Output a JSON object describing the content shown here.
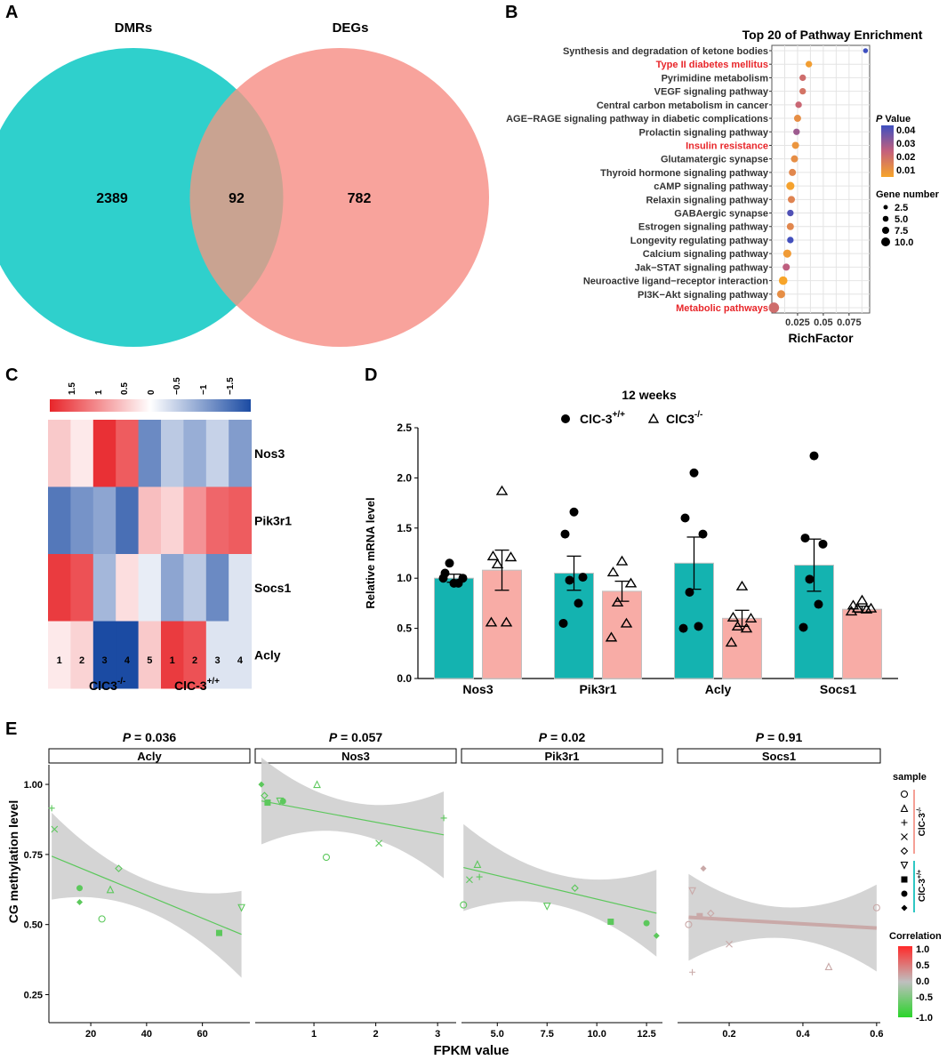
{
  "panels": {
    "A": "A",
    "B": "B",
    "C": "C",
    "D": "D",
    "E": "E"
  },
  "colors": {
    "teal": "#2fd0cc",
    "salmon": "#f89891",
    "overlap": "#c9a391",
    "bar_teal": "#14b3b0",
    "bar_salmon": "#f8aca6",
    "red_text": "#e8262a",
    "fit_green": "#5cc85c",
    "ribbon": "#cfcfcf",
    "socs1_line": "#c9a9a8"
  },
  "chart_data": [
    {
      "type": "venn",
      "panel": "A",
      "sets": [
        {
          "name": "DMRs",
          "only": "2389"
        },
        {
          "name": "DEGs",
          "only": "782"
        }
      ],
      "intersection": "92"
    },
    {
      "type": "scatter",
      "panel": "B",
      "title": "Top 20 of Pathway Enrichment",
      "xlabel": "RichFactor",
      "xticks": [
        "0.025",
        "0.05",
        "0.075"
      ],
      "xlim": [
        0,
        0.095
      ],
      "pathways": [
        {
          "name": "Synthesis and degradation of ketone bodies",
          "rich": 0.091,
          "p": 0.045,
          "genes": 1,
          "highlight": false
        },
        {
          "name": "Type II diabetes mellitus",
          "rich": 0.036,
          "p": 0.005,
          "genes": 3,
          "highlight": true
        },
        {
          "name": "Pyrimidine metabolism",
          "rich": 0.03,
          "p": 0.02,
          "genes": 3,
          "highlight": false
        },
        {
          "name": "VEGF signaling pathway",
          "rich": 0.03,
          "p": 0.018,
          "genes": 3,
          "highlight": false
        },
        {
          "name": "Central carbon metabolism in cancer",
          "rich": 0.026,
          "p": 0.022,
          "genes": 3,
          "highlight": false
        },
        {
          "name": "AGE−RAGE signaling pathway in diabetic complications",
          "rich": 0.025,
          "p": 0.01,
          "genes": 4,
          "highlight": false
        },
        {
          "name": "Prolactin signaling pathway",
          "rich": 0.024,
          "p": 0.03,
          "genes": 3,
          "highlight": false
        },
        {
          "name": "Insulin resistance",
          "rich": 0.023,
          "p": 0.008,
          "genes": 4,
          "highlight": true
        },
        {
          "name": "Glutamatergic synapse",
          "rich": 0.022,
          "p": 0.01,
          "genes": 4,
          "highlight": false
        },
        {
          "name": "Thyroid hormone signaling pathway",
          "rich": 0.02,
          "p": 0.012,
          "genes": 4,
          "highlight": false
        },
        {
          "name": "cAMP signaling pathway",
          "rich": 0.018,
          "p": 0.004,
          "genes": 6,
          "highlight": false
        },
        {
          "name": "Relaxin signaling pathway",
          "rich": 0.019,
          "p": 0.013,
          "genes": 4,
          "highlight": false
        },
        {
          "name": "GABAergic synapse",
          "rich": 0.018,
          "p": 0.042,
          "genes": 3,
          "highlight": false
        },
        {
          "name": "Estrogen signaling pathway",
          "rich": 0.018,
          "p": 0.012,
          "genes": 4,
          "highlight": false
        },
        {
          "name": "Longevity regulating pathway",
          "rich": 0.018,
          "p": 0.044,
          "genes": 3,
          "highlight": false
        },
        {
          "name": "Calcium signaling pathway",
          "rich": 0.015,
          "p": 0.006,
          "genes": 6,
          "highlight": false
        },
        {
          "name": "Jak−STAT signaling pathway",
          "rich": 0.014,
          "p": 0.025,
          "genes": 4,
          "highlight": false
        },
        {
          "name": "Neuroactive ligand−receptor interaction",
          "rich": 0.011,
          "p": 0.003,
          "genes": 7,
          "highlight": false
        },
        {
          "name": "PI3K−Akt signaling pathway",
          "rich": 0.009,
          "p": 0.01,
          "genes": 6,
          "highlight": false
        },
        {
          "name": "Metabolic pathways",
          "rich": 0.002,
          "p": 0.02,
          "genes": 12,
          "highlight": true
        }
      ],
      "legend": {
        "pvalue_title_italic": "P",
        "pvalue_title_rest": " Value",
        "pvalue_ticks": [
          "0.04",
          "0.03",
          "0.02",
          "0.01"
        ],
        "gene_title": "Gene number",
        "gene_ticks": [
          "2.5",
          "5.0",
          "7.5",
          "10.0"
        ]
      }
    },
    {
      "type": "heatmap",
      "panel": "C",
      "scale_ticks": [
        "1.5",
        "1",
        "0.5",
        "0",
        "−0.5",
        "−1",
        "−1.5"
      ],
      "rows": [
        "Nos3",
        "Pik3r1",
        "Socs1",
        "Acly"
      ],
      "columns": [
        "1",
        "2",
        "3",
        "4",
        "5",
        "1",
        "2",
        "3",
        "4"
      ],
      "values": [
        [
          0.5,
          0.2,
          1.9,
          1.5,
          -1.3,
          -0.6,
          -0.9,
          -0.5,
          -1.1
        ],
        [
          -1.5,
          -1.2,
          -1.0,
          -1.6,
          0.6,
          0.4,
          1.0,
          1.4,
          1.5
        ],
        [
          1.8,
          1.6,
          -0.8,
          0.3,
          -0.2,
          -1.0,
          -0.6,
          -1.3,
          -0.3
        ],
        [
          0.2,
          0.4,
          -2.0,
          -2.0,
          0.5,
          1.8,
          1.6,
          -0.3,
          -0.3
        ]
      ],
      "group_labels": [
        "ClC3",
        "ClC-3"
      ],
      "group_sups": [
        "-/-",
        "+/+"
      ]
    },
    {
      "type": "bar",
      "panel": "D",
      "title": "12 weeks",
      "ylabel": "Relative mRNA level",
      "ylim": [
        0,
        2.5
      ],
      "yticks": [
        "0.0",
        "0.5",
        "1.0",
        "1.5",
        "2.0",
        "2.5"
      ],
      "categories": [
        "Nos3",
        "Pik3r1",
        "Acly",
        "Socs1"
      ],
      "legend": [
        {
          "name": "ClC-3",
          "sup": "+/+"
        },
        {
          "name": "ClC3",
          "sup": "-/-"
        }
      ],
      "series": [
        {
          "name": "ClC-3+/+",
          "values": [
            1.0,
            1.05,
            1.15,
            1.13
          ],
          "sem": [
            0.04,
            0.17,
            0.26,
            0.26
          ],
          "points": [
            [
              0.95,
              1.05,
              1.0,
              1.15,
              0.95,
              1.0
            ],
            [
              1.66,
              1.44,
              1.01,
              0.98,
              0.75,
              0.55
            ],
            [
              2.05,
              1.6,
              1.44,
              0.86,
              0.52,
              0.5
            ],
            [
              2.22,
              1.4,
              1.34,
              0.99,
              0.74,
              0.51
            ]
          ]
        },
        {
          "name": "ClC3-/-",
          "values": [
            1.08,
            0.87,
            0.6,
            0.69
          ],
          "sem": [
            0.2,
            0.1,
            0.08,
            0.03
          ],
          "points": [
            [
              1.87,
              1.22,
              1.21,
              1.14,
              0.56,
              0.56
            ],
            [
              1.17,
              1.06,
              0.95,
              0.76,
              0.55,
              0.41
            ],
            [
              0.92,
              0.61,
              0.6,
              0.52,
              0.5,
              0.36
            ],
            [
              0.78,
              0.73,
              0.7,
              0.7,
              0.69,
              0.67
            ]
          ]
        }
      ]
    },
    {
      "type": "scatter",
      "panel": "E",
      "ylabel": "CG methylation level",
      "xlabel": "FPKM value",
      "yticks": [
        "0.25",
        "0.50",
        "0.75",
        "1.00"
      ],
      "ylim": [
        0.15,
        1.07
      ],
      "facets": [
        {
          "name": "Acly",
          "p_italic": "P",
          "p_rest": " = 0.036",
          "xlim": [
            5,
            77
          ],
          "xticks": [
            "20",
            "40",
            "60"
          ],
          "xtick_vals": [
            20,
            40,
            60
          ],
          "fit": [
            0.748,
            -0.0041
          ],
          "color": "#5cc85c",
          "points": [
            [
              6,
              0.915,
              "plus"
            ],
            [
              7,
              0.84,
              "x"
            ],
            [
              16,
              0.63,
              "dot"
            ],
            [
              16,
              0.58,
              "diamondf"
            ],
            [
              24,
              0.52,
              "circle"
            ],
            [
              27,
              0.625,
              "tri"
            ],
            [
              30,
              0.7,
              "diamond"
            ],
            [
              66,
              0.47,
              "square"
            ],
            [
              74,
              0.56,
              "tri_down"
            ]
          ]
        },
        {
          "name": "Nos3",
          "p_italic": "P",
          "p_rest": " = 0.057",
          "xlim": [
            0.05,
            3.3
          ],
          "xticks": [
            "1",
            "2",
            "3"
          ],
          "xtick_vals": [
            1,
            2,
            3
          ],
          "fit": [
            0.945,
            -0.041
          ],
          "color": "#5cc85c",
          "points": [
            [
              0.15,
              1.0,
              "diamondf"
            ],
            [
              0.2,
              0.96,
              "diamond"
            ],
            [
              0.25,
              0.935,
              "square"
            ],
            [
              0.45,
              0.94,
              "tri_down"
            ],
            [
              0.5,
              0.94,
              "dot"
            ],
            [
              1.05,
              1.0,
              "tri"
            ],
            [
              1.2,
              0.74,
              "circle"
            ],
            [
              2.05,
              0.79,
              "x"
            ],
            [
              3.1,
              0.88,
              "plus"
            ]
          ]
        },
        {
          "name": "Pik3r1",
          "p_italic": "P",
          "p_rest": " = 0.02",
          "xlim": [
            3.2,
            13.3
          ],
          "xticks": [
            "5.0",
            "7.5",
            "10.0",
            "12.5"
          ],
          "xtick_vals": [
            5,
            7.5,
            10,
            12.5
          ],
          "fit": [
            0.705,
            -0.0168
          ],
          "color": "#5cc85c",
          "points": [
            [
              3.3,
              0.57,
              "circle"
            ],
            [
              3.6,
              0.66,
              "x"
            ],
            [
              4.0,
              0.715,
              "tri"
            ],
            [
              4.1,
              0.67,
              "plus"
            ],
            [
              7.5,
              0.565,
              "tri_down"
            ],
            [
              8.9,
              0.63,
              "diamond"
            ],
            [
              10.7,
              0.51,
              "square"
            ],
            [
              12.5,
              0.505,
              "dot"
            ],
            [
              13.0,
              0.46,
              "diamondf"
            ]
          ]
        },
        {
          "name": "Socs1",
          "p_italic": "P",
          "p_rest": " = 0.91",
          "xlim": [
            0.06,
            0.61
          ],
          "xticks": [
            "0.2",
            "0.4",
            "0.6"
          ],
          "xtick_vals": [
            0.2,
            0.4,
            0.6
          ],
          "fit": [
            0.528,
            -0.075
          ],
          "color": "#c9a9a8",
          "points": [
            [
              0.1,
              0.33,
              "plus"
            ],
            [
              0.09,
              0.5,
              "circle"
            ],
            [
              0.1,
              0.62,
              "tri_down"
            ],
            [
              0.12,
              0.53,
              "square"
            ],
            [
              0.13,
              0.7,
              "diamondf"
            ],
            [
              0.15,
              0.54,
              "diamond"
            ],
            [
              0.2,
              0.43,
              "x"
            ],
            [
              0.47,
              0.35,
              "tri"
            ],
            [
              0.6,
              0.56,
              "circle"
            ]
          ]
        }
      ],
      "legend": {
        "title": "sample",
        "groups": [
          {
            "label": "ClC-3",
            "sup": "-/-"
          },
          {
            "label": "ClC-3",
            "sup": "+/+"
          }
        ],
        "corr_title": "Correlation",
        "corr_ticks": [
          "1.0",
          "0.5",
          "0.0",
          "-0.5",
          "-1.0"
        ]
      }
    }
  ]
}
